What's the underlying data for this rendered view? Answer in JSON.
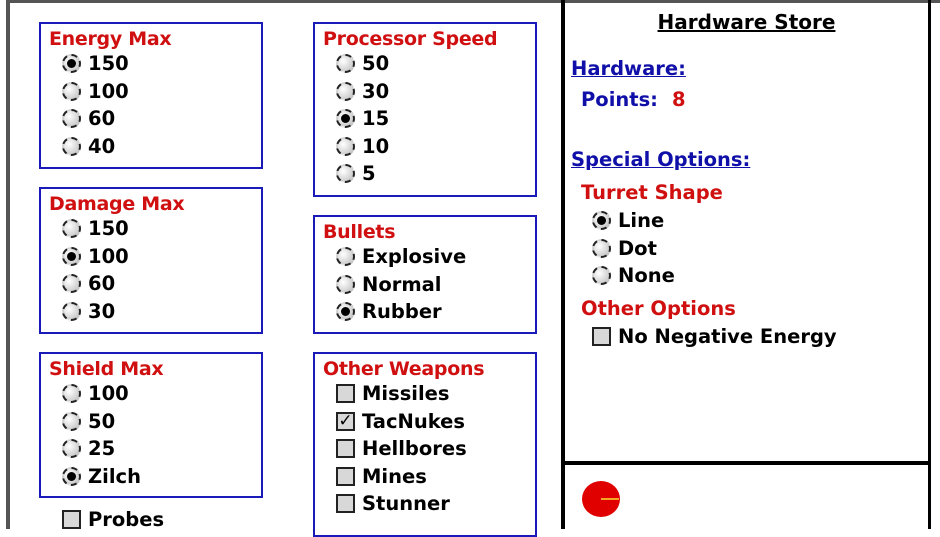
{
  "groups": {
    "energy": {
      "title": "Energy Max",
      "options": [
        "150",
        "100",
        "60",
        "40"
      ],
      "selected": "150"
    },
    "damage": {
      "title": "Damage Max",
      "options": [
        "150",
        "100",
        "60",
        "30"
      ],
      "selected": "100"
    },
    "shield": {
      "title": "Shield Max",
      "options": [
        "100",
        "50",
        "25",
        "Zilch"
      ],
      "selected": "Zilch"
    },
    "processor": {
      "title": "Processor Speed",
      "options": [
        "50",
        "30",
        "15",
        "10",
        "5"
      ],
      "selected": "15"
    },
    "bullets": {
      "title": "Bullets",
      "options": [
        "Explosive",
        "Normal",
        "Rubber"
      ],
      "selected": "Rubber"
    },
    "weapons": {
      "title": "Other Weapons",
      "items": [
        {
          "label": "Missiles",
          "checked": false
        },
        {
          "label": "TacNukes",
          "checked": true
        },
        {
          "label": "Hellbores",
          "checked": false
        },
        {
          "label": "Mines",
          "checked": false
        },
        {
          "label": "Stunner",
          "checked": false
        }
      ]
    }
  },
  "probes": {
    "label": "Probes",
    "checked": false
  },
  "store": {
    "title": "Hardware Store",
    "hardware_label": "Hardware:",
    "points_label": "Points:",
    "points_value": "8",
    "special_label": "Special Options:",
    "turret": {
      "title": "Turret Shape",
      "options": [
        "Line",
        "Dot",
        "None"
      ],
      "selected": "Line"
    },
    "other": {
      "title": "Other Options",
      "items": [
        {
          "label": "No Negative Energy",
          "checked": false
        }
      ]
    }
  },
  "colors": {
    "group_border": "#1a1ab8",
    "heading_red": "#d01010",
    "heading_blue": "#1010a8",
    "robot": "#e00000",
    "turret_line": "#f5a623"
  },
  "preview": {
    "icon": "robot-icon"
  }
}
